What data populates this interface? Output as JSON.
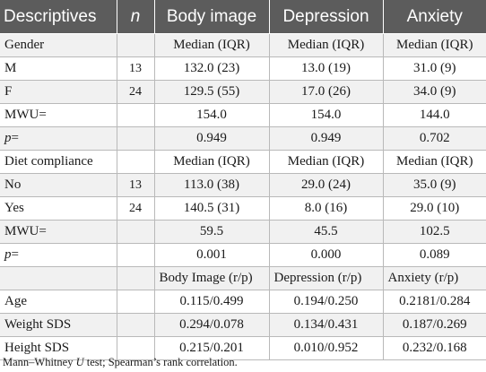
{
  "header": {
    "col_descriptives": "Descriptives",
    "col_n": "n",
    "col_body": "Body image",
    "col_depression": "Depression",
    "col_anxiety": "Anxiety"
  },
  "rows": [
    {
      "label": "Gender",
      "n": "",
      "body": "Median (IQR)",
      "depression": "Median (IQR)",
      "anxiety": "Median (IQR)"
    },
    {
      "label": "M",
      "n": "13",
      "body": "132.0 (23)",
      "depression": "13.0 (19)",
      "anxiety": "31.0 (9)"
    },
    {
      "label": "F",
      "n": "24",
      "body": "129.5 (55)",
      "depression": "17.0 (26)",
      "anxiety": "34.0 (9)"
    },
    {
      "label": "MWU=",
      "n": "",
      "body": "154.0",
      "depression": "154.0",
      "anxiety": "144.0"
    },
    {
      "label_prefix": "p",
      "label_suffix": "=",
      "n": "",
      "body": "0.949",
      "depression": "0.949",
      "anxiety": "0.702"
    },
    {
      "label": "Diet compliance",
      "n": "",
      "body": "Median (IQR)",
      "depression": "Median (IQR)",
      "anxiety": "Median (IQR)"
    },
    {
      "label": "No",
      "n": "13",
      "body": "113.0 (38)",
      "depression": "29.0 (24)",
      "anxiety": "35.0 (9)"
    },
    {
      "label": "Yes",
      "n": "24",
      "body": "140.5 (31)",
      "depression": "8.0 (16)",
      "anxiety": "29.0 (10)"
    },
    {
      "label": "MWU=",
      "n": "",
      "body": "59.5",
      "depression": "45.5",
      "anxiety": "102.5"
    },
    {
      "label_prefix": "p",
      "label_suffix": "=",
      "n": "",
      "body": "0.001",
      "depression": "0.000",
      "anxiety": "0.089"
    },
    {
      "label": "",
      "n": "",
      "body": "Body Image (r/p)",
      "depression": "Depression (r/p)",
      "anxiety": "Anxiety (r/p)",
      "left_values": true
    },
    {
      "label": "Age",
      "n": "",
      "body": "0.115/0.499",
      "depression": "0.194/0.250",
      "anxiety": "0.2181/0.284"
    },
    {
      "label": "Weight SDS",
      "n": "",
      "body": "0.294/0.078",
      "depression": "0.134/0.431",
      "anxiety": "0.187/0.269"
    },
    {
      "label": "Height SDS",
      "n": "",
      "body": "0.215/0.201",
      "depression": "0.010/0.952",
      "anxiety": "0.232/0.168"
    }
  ],
  "footnote": {
    "part1": "Mann–Whitney ",
    "u": "U",
    "part2": " test; Spearman’s rank correlation."
  }
}
